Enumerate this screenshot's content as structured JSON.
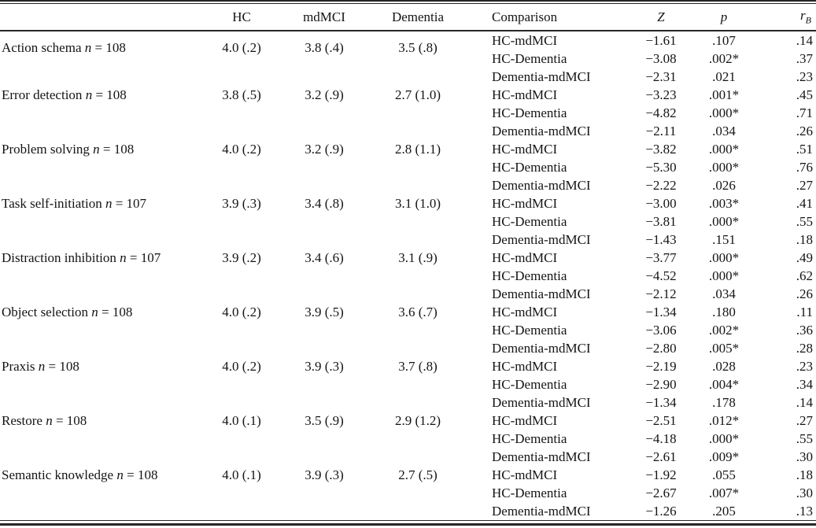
{
  "table": {
    "columns": {
      "hc": "HC",
      "mdmci": "mdMCI",
      "dementia": "Dementia",
      "comparison": "Comparison",
      "z": "Z",
      "p": "p",
      "r_main": "r",
      "r_sub": "B"
    },
    "n_symbol": "n",
    "groups": [
      {
        "label": "Action schema",
        "n": "108",
        "hc": "4.0 (.2)",
        "mdmci": "3.8 (.4)",
        "dementia": "3.5 (.8)",
        "comparisons": [
          {
            "pair": "HC-mdMCI",
            "z": "−1.61",
            "p": ".107",
            "rb": ".14"
          },
          {
            "pair": "HC-Dementia",
            "z": "−3.08",
            "p": ".002*",
            "rb": ".37"
          },
          {
            "pair": "Dementia-mdMCI",
            "z": "−2.31",
            "p": ".021",
            "rb": ".23"
          }
        ]
      },
      {
        "label": "Error detection",
        "n": "108",
        "hc": "3.8 (.5)",
        "mdmci": "3.2 (.9)",
        "dementia": "2.7 (1.0)",
        "comparisons": [
          {
            "pair": "HC-mdMCI",
            "z": "−3.23",
            "p": ".001*",
            "rb": ".45"
          },
          {
            "pair": "HC-Dementia",
            "z": "−4.82",
            "p": ".000*",
            "rb": ".71"
          },
          {
            "pair": "Dementia-mdMCI",
            "z": "−2.11",
            "p": ".034",
            "rb": ".26"
          }
        ]
      },
      {
        "label": "Problem solving",
        "n": "108",
        "hc": "4.0 (.2)",
        "mdmci": "3.2 (.9)",
        "dementia": "2.8 (1.1)",
        "comparisons": [
          {
            "pair": "HC-mdMCI",
            "z": "−3.82",
            "p": ".000*",
            "rb": ".51"
          },
          {
            "pair": "HC-Dementia",
            "z": "−5.30",
            "p": ".000*",
            "rb": ".76"
          },
          {
            "pair": "Dementia-mdMCI",
            "z": "−2.22",
            "p": ".026",
            "rb": ".27"
          }
        ]
      },
      {
        "label": "Task self-initiation",
        "n": "107",
        "hc": "3.9 (.3)",
        "mdmci": "3.4 (.8)",
        "dementia": "3.1 (1.0)",
        "comparisons": [
          {
            "pair": "HC-mdMCI",
            "z": "−3.00",
            "p": ".003*",
            "rb": ".41"
          },
          {
            "pair": "HC-Dementia",
            "z": "−3.81",
            "p": ".000*",
            "rb": ".55"
          },
          {
            "pair": "Dementia-mdMCI",
            "z": "−1.43",
            "p": ".151",
            "rb": ".18"
          }
        ]
      },
      {
        "label": "Distraction inhibition",
        "n": "107",
        "hc": "3.9 (.2)",
        "mdmci": "3.4 (.6)",
        "dementia": "3.1 (.9)",
        "comparisons": [
          {
            "pair": "HC-mdMCI",
            "z": "−3.77",
            "p": ".000*",
            "rb": ".49"
          },
          {
            "pair": "HC-Dementia",
            "z": "−4.52",
            "p": ".000*",
            "rb": ".62"
          },
          {
            "pair": "Dementia-mdMCI",
            "z": "−2.12",
            "p": ".034",
            "rb": ".26"
          }
        ]
      },
      {
        "label": "Object selection",
        "n": "108",
        "hc": "4.0 (.2)",
        "mdmci": "3.9 (.5)",
        "dementia": "3.6 (.7)",
        "comparisons": [
          {
            "pair": "HC-mdMCI",
            "z": "−1.34",
            "p": ".180",
            "rb": ".11"
          },
          {
            "pair": "HC-Dementia",
            "z": "−3.06",
            "p": ".002*",
            "rb": ".36"
          },
          {
            "pair": "Dementia-mdMCI",
            "z": "−2.80",
            "p": ".005*",
            "rb": ".28"
          }
        ]
      },
      {
        "label": "Praxis",
        "n": "108",
        "hc": "4.0 (.2)",
        "mdmci": "3.9 (.3)",
        "dementia": "3.7 (.8)",
        "comparisons": [
          {
            "pair": "HC-mdMCI",
            "z": "−2.19",
            "p": ".028",
            "rb": ".23"
          },
          {
            "pair": "HC-Dementia",
            "z": "−2.90",
            "p": ".004*",
            "rb": ".34"
          },
          {
            "pair": "Dementia-mdMCI",
            "z": "−1.34",
            "p": ".178",
            "rb": ".14"
          }
        ]
      },
      {
        "label": "Restore",
        "n": "108",
        "hc": "4.0 (.1)",
        "mdmci": "3.5 (.9)",
        "dementia": "2.9 (1.2)",
        "comparisons": [
          {
            "pair": "HC-mdMCI",
            "z": "−2.51",
            "p": ".012*",
            "rb": ".27"
          },
          {
            "pair": "HC-Dementia",
            "z": "−4.18",
            "p": ".000*",
            "rb": ".55"
          },
          {
            "pair": "Dementia-mdMCI",
            "z": "−2.61",
            "p": ".009*",
            "rb": ".30"
          }
        ]
      },
      {
        "label": "Semantic knowledge",
        "n": "108",
        "hc": "4.0 (.1)",
        "mdmci": "3.9 (.3)",
        "dementia": "2.7 (.5)",
        "comparisons": [
          {
            "pair": "HC-mdMCI",
            "z": "−1.92",
            "p": ".055",
            "rb": ".18"
          },
          {
            "pair": "HC-Dementia",
            "z": "−2.67",
            "p": ".007*",
            "rb": ".30"
          },
          {
            "pair": "Dementia-mdMCI",
            "z": "−1.26",
            "p": ".205",
            "rb": ".13"
          }
        ]
      }
    ]
  }
}
